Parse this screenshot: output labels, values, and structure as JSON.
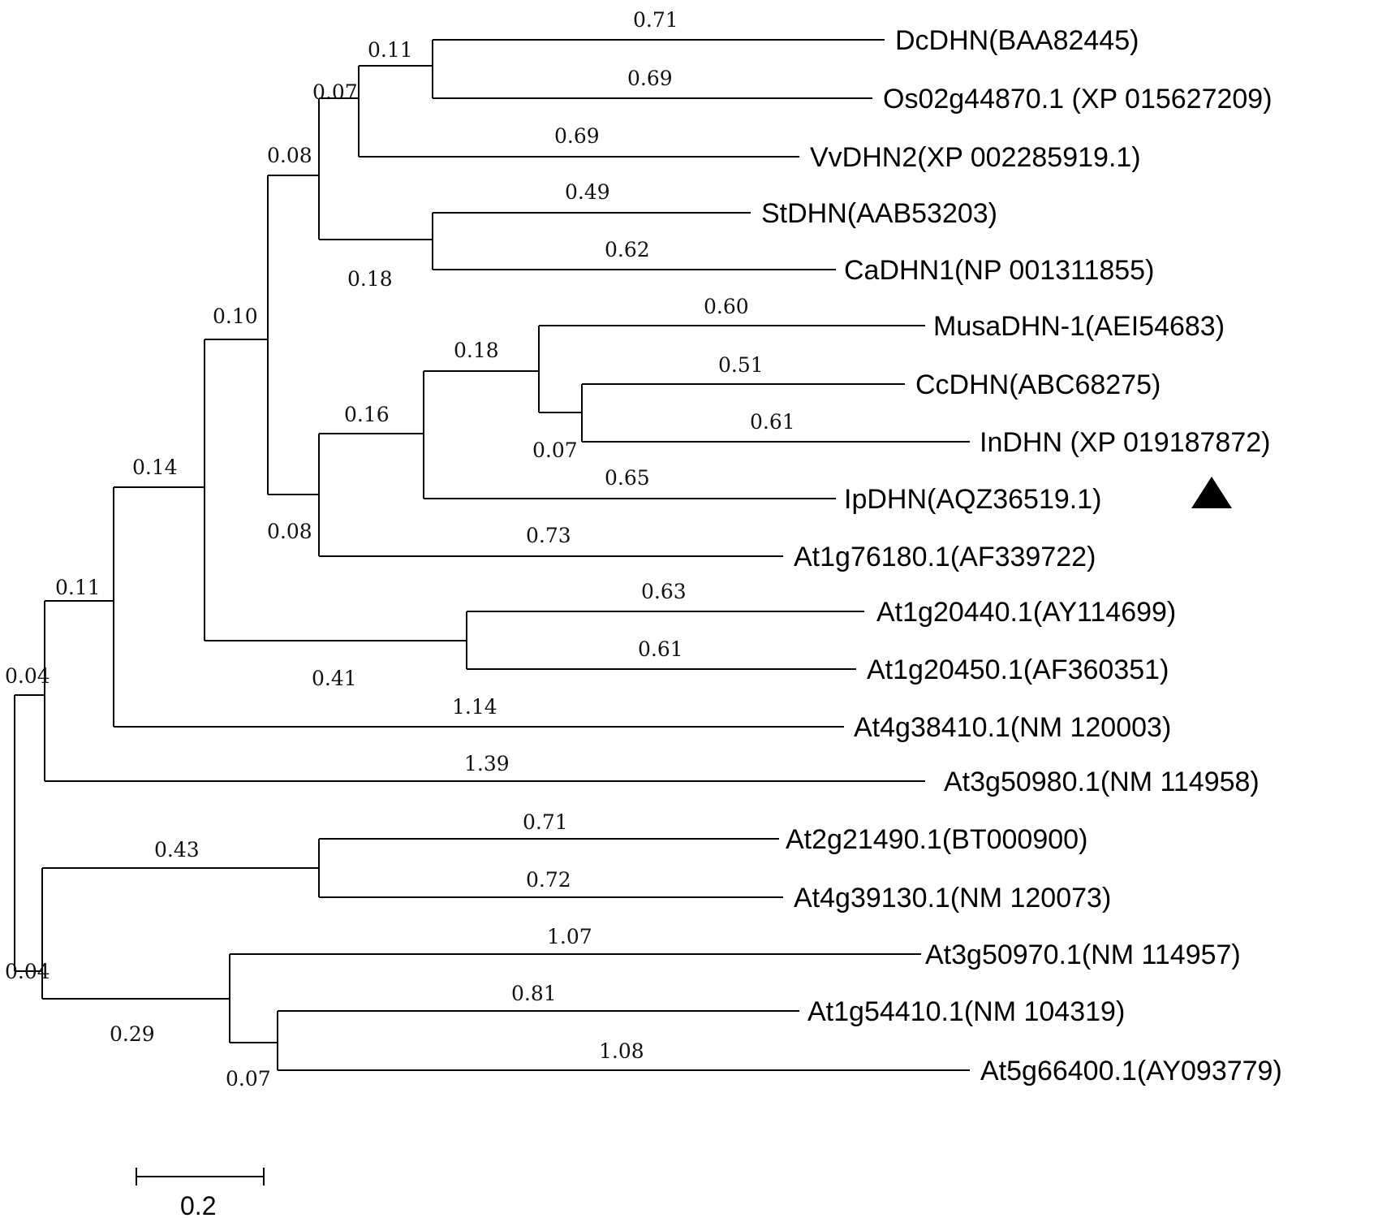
{
  "tree": {
    "marker_color": "#000000",
    "marker_icon": "triangle-up-icon",
    "marked_taxon": "IpDHN(AQZ36519.1)",
    "taxa": [
      "DcDHN(BAA82445)",
      "Os02g44870.1 (XP 015627209)",
      "VvDHN2(XP 002285919.1)",
      "StDHN(AAB53203)",
      "CaDHN1(NP 001311855)",
      "MusaDHN-1(AEI54683)",
      "CcDHN(ABC68275)",
      "InDHN (XP 019187872)",
      "IpDHN(AQZ36519.1)",
      "At1g76180.1(AF339722)",
      "At1g20440.1(AY114699)",
      "At1g20450.1(AF360351)",
      "At4g38410.1(NM 120003)",
      "At3g50980.1(NM 114958)",
      "At2g21490.1(BT000900)",
      "At4g39130.1(NM 120073)",
      "At3g50970.1(NM 114957)",
      "At1g54410.1(NM 104319)",
      "At5g66400.1(AY093779)"
    ],
    "branch_lengths": [
      "0.71",
      "0.69",
      "0.11",
      "0.69",
      "0.07",
      "0.49",
      "0.62",
      "0.18",
      "0.08",
      "0.60",
      "0.51",
      "0.61",
      "0.07",
      "0.18",
      "0.65",
      "0.16",
      "0.73",
      "0.08",
      "0.10",
      "0.63",
      "0.61",
      "0.41",
      "0.14",
      "1.14",
      "0.11",
      "1.39",
      "0.04",
      "0.71",
      "0.72",
      "0.43",
      "1.07",
      "0.81",
      "1.08",
      "0.07",
      "0.29",
      "0.04"
    ],
    "scale_bar": {
      "label": "0.2",
      "value": 0.2
    }
  }
}
